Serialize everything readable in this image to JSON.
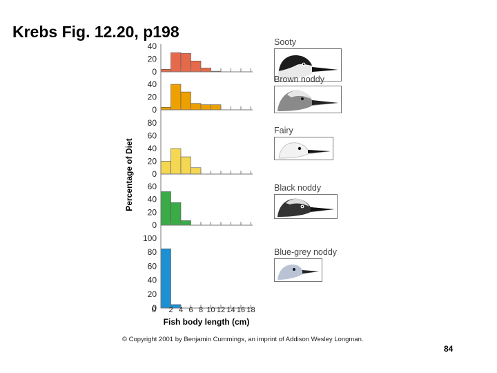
{
  "slide": {
    "title": "Krebs Fig. 12.20, p198",
    "page_number": "84",
    "copyright": "© Copyright 2001 by Benjamin Cummings, an imprint of Addison Wesley Longman."
  },
  "chart_data": {
    "type": "bar",
    "title": "",
    "xlabel": "Fish body length (cm)",
    "ylabel": "Percentage of Diet",
    "x_ticks": [
      "2",
      "4",
      "6",
      "8",
      "10",
      "12",
      "14",
      "16",
      "18"
    ],
    "x_range": [
      0,
      18
    ],
    "bin_width_cm": 2,
    "grid": false,
    "series": [
      {
        "name": "Sooty",
        "color": "#e56a4b",
        "bin_starts": [
          0,
          2,
          4,
          6,
          8,
          10
        ],
        "values": [
          4,
          30,
          29,
          17,
          6,
          1
        ],
        "ylim": [
          0,
          40
        ],
        "y_ticks": [
          "0",
          "20",
          "40"
        ]
      },
      {
        "name": "Brown noddy",
        "color": "#eea000",
        "bin_starts": [
          0,
          2,
          4,
          6,
          8,
          10
        ],
        "values": [
          4,
          40,
          28,
          10,
          8,
          8
        ],
        "ylim": [
          0,
          40
        ],
        "y_ticks": [
          "0",
          "20",
          "40"
        ]
      },
      {
        "name": "Fairy",
        "color": "#f4d752",
        "bin_starts": [
          0,
          2,
          4,
          6
        ],
        "values": [
          20,
          40,
          27,
          10
        ],
        "ylim": [
          0,
          80
        ],
        "y_ticks": [
          "0",
          "20",
          "40",
          "60",
          "80"
        ]
      },
      {
        "name": "Black noddy",
        "color": "#3aab47",
        "bin_starts": [
          0,
          2,
          4
        ],
        "values": [
          52,
          35,
          7
        ],
        "ylim": [
          0,
          60
        ],
        "y_ticks": [
          "0",
          "20",
          "40",
          "60"
        ]
      },
      {
        "name": "Blue-grey noddy",
        "color": "#1d8fd3",
        "bin_starts": [
          0,
          2
        ],
        "values": [
          85,
          5
        ],
        "ylim": [
          0,
          100
        ],
        "y_ticks": [
          "0",
          "20",
          "40",
          "60",
          "80",
          "100"
        ]
      }
    ]
  }
}
